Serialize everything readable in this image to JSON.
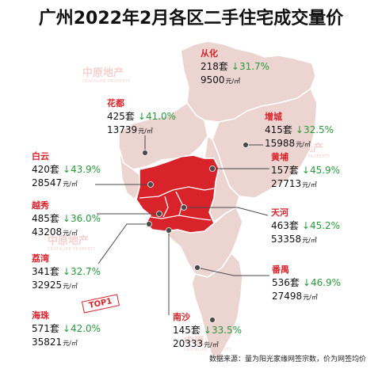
{
  "title": "广州2022年2月各区二手住宅成交量价",
  "districts": [
    {
      "name": "从化",
      "volume": "218套",
      "change": "↓31.7%",
      "price": "9500",
      "unit": "元/㎡"
    },
    {
      "name": "花都",
      "volume": "425套",
      "change": "↓41.0%",
      "price": "13739",
      "unit": "元/㎡"
    },
    {
      "name": "增城",
      "volume": "415套",
      "change": "↓32.5%",
      "price": "15988",
      "unit": "元/㎡"
    },
    {
      "name": "白云",
      "volume": "420套",
      "change": "↓43.9%",
      "price": "28547",
      "unit": "元/㎡"
    },
    {
      "name": "黄埔",
      "volume": "157套",
      "change": "↓45.9%",
      "price": "27713",
      "unit": "元/㎡"
    },
    {
      "name": "越秀",
      "volume": "485套",
      "change": "↓36.0%",
      "price": "43208",
      "unit": "元/㎡"
    },
    {
      "name": "天河",
      "volume": "463套",
      "change": "↓45.2%",
      "price": "53358",
      "unit": "元/㎡"
    },
    {
      "name": "荔湾",
      "volume": "341套",
      "change": "↓32.7%",
      "price": "32925",
      "unit": "元/㎡"
    },
    {
      "name": "番禺",
      "volume": "536套",
      "change": "↓46.9%",
      "price": "27498",
      "unit": "元/㎡"
    },
    {
      "name": "海珠",
      "volume": "571套",
      "change": "↓42.0%",
      "price": "35821",
      "unit": "元/㎡"
    },
    {
      "name": "南沙",
      "volume": "145套",
      "change": "↓33.5%",
      "price": "20333",
      "unit": "元/㎡"
    }
  ],
  "top_badge": "TOP1",
  "footer": "数据来源：量为阳光家缘网签宗数，价为网签均价",
  "watermark": {
    "cn": "中原地产",
    "en": "CENTALINE PROPERTY"
  },
  "colors": {
    "district_name": "#d8232a",
    "decline": "#2a9a3c",
    "highlight_area": "#d8232a",
    "map_area": "#ecd4d0",
    "border": "#ffffff"
  }
}
